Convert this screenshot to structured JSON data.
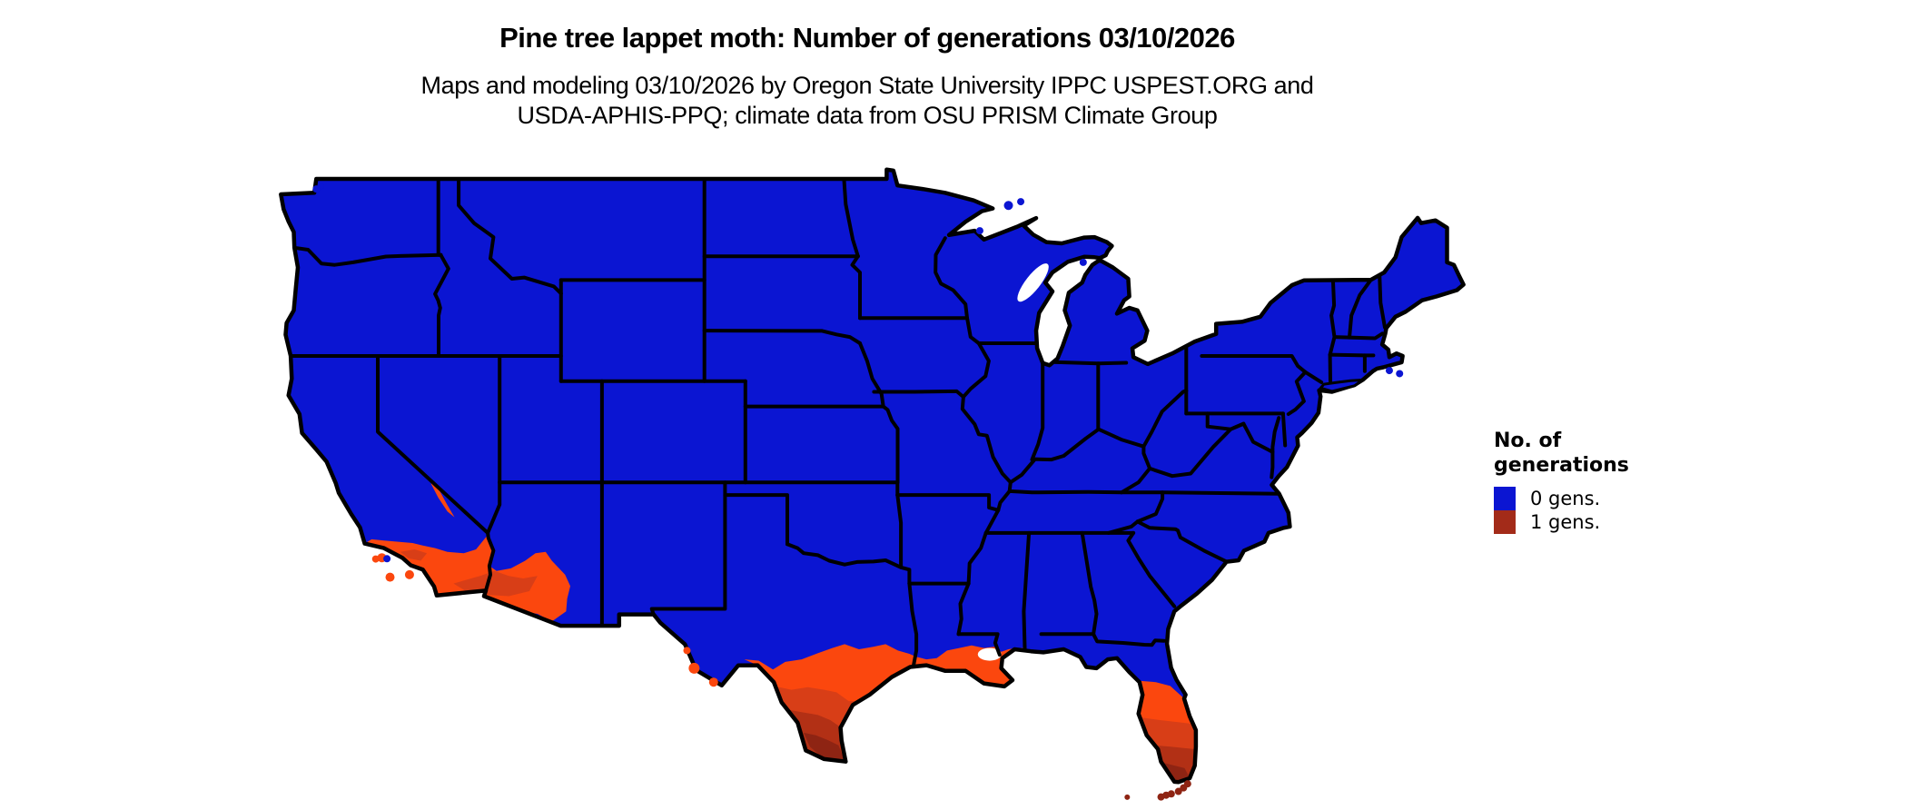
{
  "title": "Pine tree lappet moth: Number of generations 03/10/2026",
  "subtitle_line1": "Maps and modeling 03/10/2026 by Oregon State University IPPC USPEST.ORG and",
  "subtitle_line2": "USDA-APHIS-PPQ; climate data from OSU PRISM Climate Group",
  "legend": {
    "title_line1": "No. of",
    "title_line2": "generations",
    "items": [
      {
        "label": "0 gens.",
        "color": "#0B15D2"
      },
      {
        "label": "1 gens.",
        "color": "#A32B19"
      }
    ]
  },
  "chart_data": {
    "type": "heatmap",
    "title": "Pine tree lappet moth: Number of generations 03/10/2026",
    "subtitle": "Maps and modeling 03/10/2026 by Oregon State University IPPC USPEST.ORG and USDA-APHIS-PPQ; climate data from OSU PRISM Climate Group",
    "map_kind": "US lower-48 choropleth of model-predicted generations",
    "legend_title": "No. of generations",
    "classes": [
      {
        "value": "0 gens.",
        "color": "#0B15D2",
        "regions": "Nearly the entire contiguous United States"
      },
      {
        "value": "1 gens.",
        "color_range": [
          "#FB470E",
          "#8E2413"
        ],
        "regions": "Southern coastal California, Death Valley, southwestern Arizona / Colorado River valley, Big Bend spots, southern and Gulf-coast Texas, coastal Louisiana and Mississippi, Florida peninsula south of about 29N, Florida Keys"
      }
    ],
    "legend_position": "right"
  },
  "map": {
    "colors": {
      "zero_gen": "#0B15D2",
      "one_gen_low": "#FB470E",
      "one_gen_mid": "#D83E17",
      "one_gen_high": "#B23015",
      "one_gen_max": "#8E2413",
      "border": "#000000",
      "water": "#FFFFFF"
    }
  }
}
